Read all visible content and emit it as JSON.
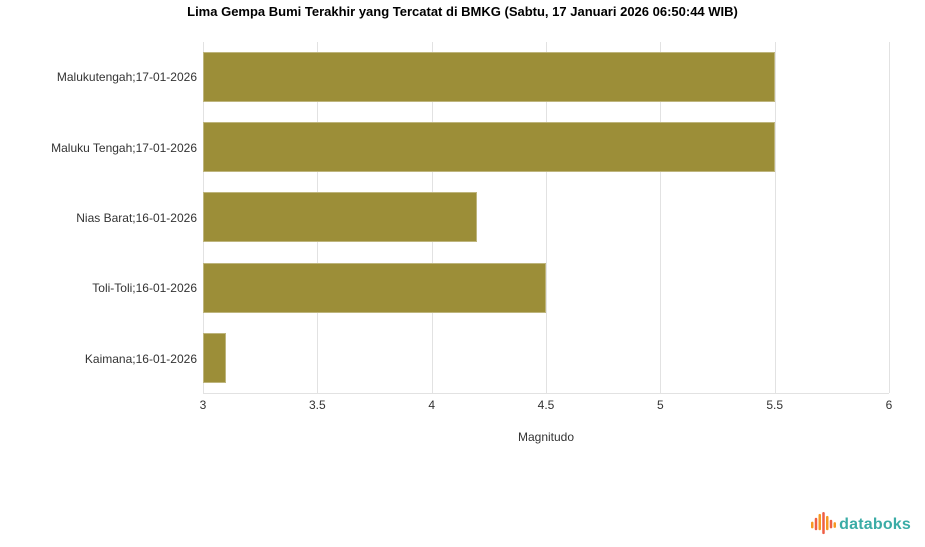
{
  "chart_data": {
    "type": "bar",
    "orientation": "horizontal",
    "title": "Lima Gempa Bumi Terakhir yang Tercatat di BMKG (Sabtu, 17 Januari 2026 06:50:44 WIB)",
    "categories": [
      "Malukutengah;17-01-2026",
      "Maluku Tengah;17-01-2026",
      "Nias Barat;16-01-2026",
      "Toli-Toli;16-01-2026",
      "Kaimana;16-01-2026"
    ],
    "values": [
      5.5,
      5.5,
      4.2,
      4.5,
      3.1
    ],
    "xlabel": "Magnitudo",
    "xlim": [
      3,
      6
    ],
    "xticks": [
      3,
      3.5,
      4,
      4.5,
      5,
      5.5,
      6
    ],
    "grid": true,
    "legend": false,
    "bar_color": "#9c8e38",
    "grid_color": "#e2e2e2",
    "axis_text_color": "#333333"
  },
  "branding": {
    "logo_text": "databoks",
    "logo_text_color": "#3aaca6",
    "logo_icon": "databoks-pulse-icon",
    "logo_icon_colors": [
      "#f79822",
      "#ee5f45"
    ]
  }
}
